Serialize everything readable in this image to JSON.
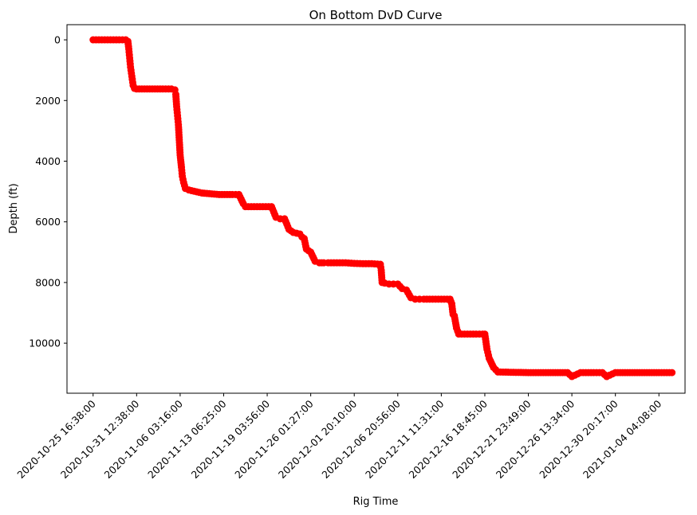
{
  "chart_data": {
    "type": "scatter",
    "title": "On Bottom DvD Curve",
    "xlabel": "Rig Time",
    "ylabel": "Depth (ft)",
    "grid": false,
    "y_inverted": true,
    "ylim": [
      11650,
      -500
    ],
    "y_ticks": [
      0,
      2000,
      4000,
      6000,
      8000,
      10000
    ],
    "x_tick_labels": [
      "2020-10-25 16:38:00",
      "2020-10-31 12:38:00",
      "2020-11-06 03:16:00",
      "2020-11-13 06:25:00",
      "2020-11-19 03:56:00",
      "2020-11-26 01:27:00",
      "2020-12-01 20:10:00",
      "2020-12-06 20:56:00",
      "2020-12-11 11:31:00",
      "2020-12-16 18:45:00",
      "2020-12-21 23:49:00",
      "2020-12-26 13:34:00",
      "2020-12-30 20:17:00",
      "2021-01-04 04:08:00"
    ],
    "x_index_range": [
      -0.6,
      13.6
    ],
    "marker_color": "#ff0000",
    "series": [
      {
        "x_index": [
          0,
          0.2,
          0.4,
          0.6,
          0.75,
          0.8,
          0.82,
          0.84,
          0.86,
          0.88,
          0.9,
          0.92,
          0.95,
          1.0,
          1.3,
          1.6,
          1.8,
          1.88,
          1.9,
          1.92,
          1.94,
          1.96,
          1.98,
          2.0,
          2.03,
          2.05,
          2.08,
          2.12,
          2.2,
          2.5,
          2.9,
          3.2,
          3.35,
          3.4,
          3.45,
          3.5,
          3.7,
          3.9,
          4.1,
          4.2,
          4.3,
          4.4,
          4.5,
          4.6,
          4.75,
          4.8,
          4.85,
          4.9,
          5.0,
          5.1,
          5.2,
          5.25,
          5.3,
          5.4,
          5.6,
          5.8,
          6.0,
          6.2,
          6.4,
          6.6,
          6.62,
          6.64,
          6.7,
          6.8,
          6.9,
          7.0,
          7.1,
          7.2,
          7.3,
          7.4,
          7.5,
          7.6,
          7.8,
          8.0,
          8.2,
          8.24,
          8.27,
          8.3,
          8.35,
          8.4,
          8.6,
          8.8,
          8.95,
          9.0,
          9.05,
          9.1,
          9.2,
          9.3,
          9.6,
          10.0,
          10.4,
          10.9,
          11.0,
          11.2,
          11.5,
          11.7,
          11.8,
          12.0,
          12.5,
          13.0,
          13.3
        ],
        "y": [
          0,
          0,
          0,
          0,
          0,
          50,
          300,
          600,
          900,
          1100,
          1300,
          1500,
          1600,
          1620,
          1620,
          1620,
          1620,
          1650,
          1800,
          2200,
          2500,
          2800,
          3300,
          3800,
          4200,
          4500,
          4700,
          4900,
          4950,
          5050,
          5100,
          5100,
          5100,
          5250,
          5400,
          5500,
          5500,
          5500,
          5500,
          5850,
          5900,
          5900,
          6250,
          6350,
          6400,
          6500,
          6550,
          6900,
          7000,
          7300,
          7350,
          7350,
          7350,
          7350,
          7350,
          7350,
          7370,
          7380,
          7380,
          7400,
          7600,
          8000,
          8020,
          8050,
          8050,
          8050,
          8200,
          8250,
          8500,
          8550,
          8550,
          8550,
          8550,
          8550,
          8550,
          8700,
          9050,
          9100,
          9500,
          9700,
          9700,
          9700,
          9700,
          9700,
          10200,
          10500,
          10800,
          10950,
          10960,
          10970,
          10970,
          10970,
          11100,
          10970,
          10970,
          10970,
          11100,
          10970,
          10970,
          10970,
          10970
        ]
      }
    ]
  }
}
